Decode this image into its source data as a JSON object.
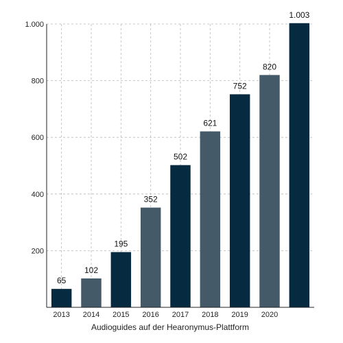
{
  "chart_data": {
    "type": "bar",
    "categories": [
      "2013",
      "2014",
      "2015",
      "2016",
      "2017",
      "2018",
      "2019",
      "2020",
      ""
    ],
    "values": [
      65,
      102,
      195,
      352,
      502,
      621,
      752,
      820,
      1003
    ],
    "data_labels": [
      "65",
      "102",
      "195",
      "352",
      "502",
      "621",
      "752",
      "820",
      "1.003"
    ],
    "bar_colors": [
      "#062a40",
      "#455a69",
      "#062a40",
      "#455a69",
      "#062a40",
      "#455a69",
      "#062a40",
      "#455a69",
      "#062a40"
    ],
    "xlabel": "Audioguides auf der Hearonymus-Plattform",
    "ylabel": "",
    "ylim": [
      0,
      1000
    ],
    "yticks": [
      200,
      400,
      600,
      800,
      1000
    ],
    "ytick_labels": [
      "200",
      "400",
      "600",
      "800",
      "1.000"
    ],
    "grid": true,
    "legend": false
  }
}
